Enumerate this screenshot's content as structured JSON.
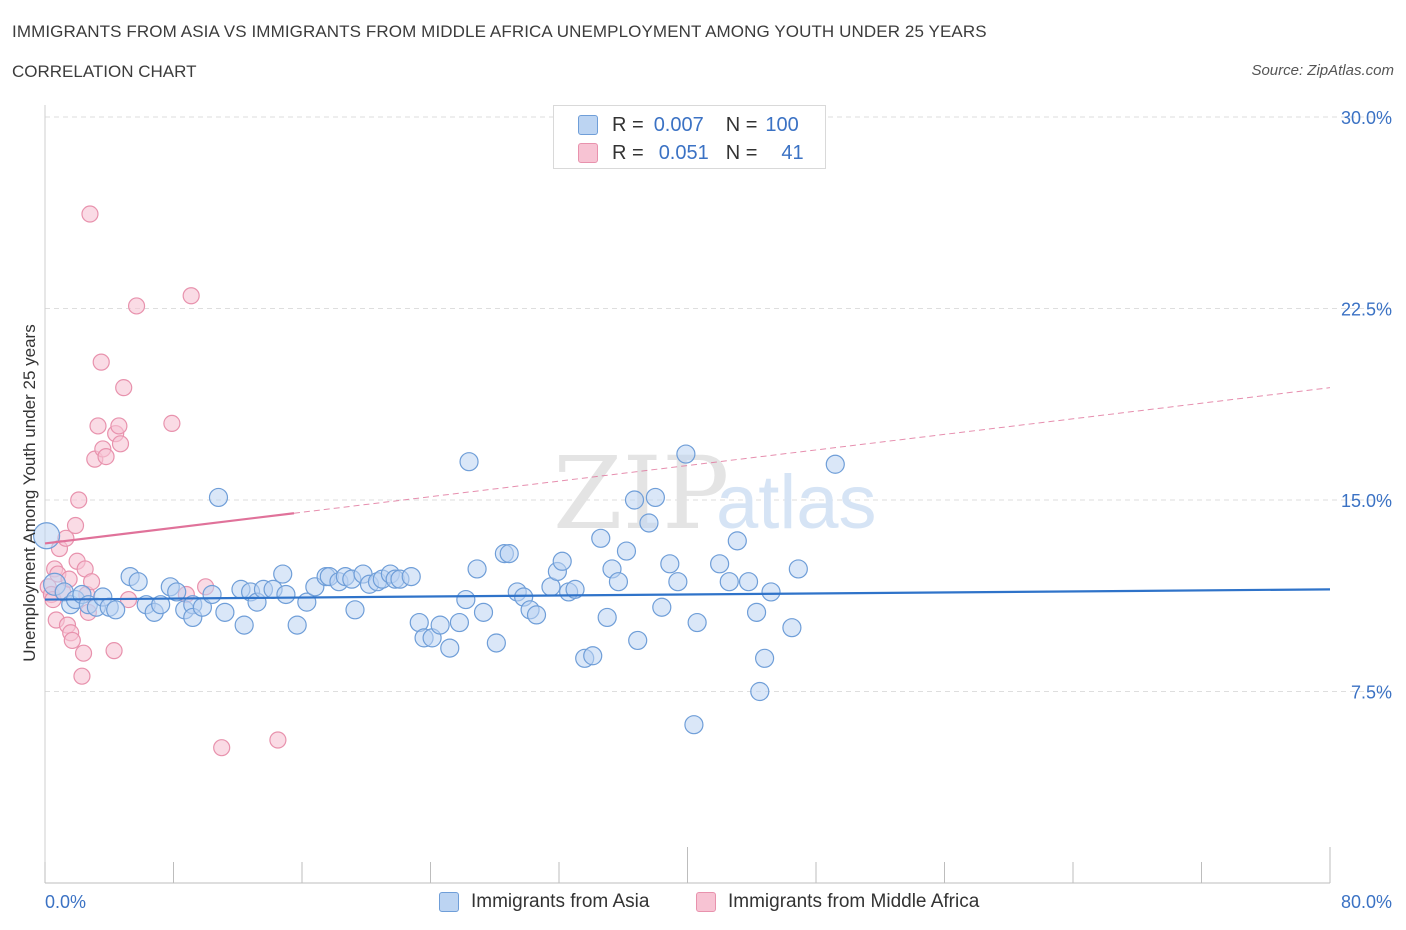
{
  "header": {
    "title": "IMMIGRANTS FROM ASIA VS IMMIGRANTS FROM MIDDLE AFRICA UNEMPLOYMENT AMONG YOUTH UNDER 25 YEARS",
    "subtitle": "CORRELATION CHART",
    "source": "Source: ZipAtlas.com"
  },
  "watermark": {
    "zip": "ZIP",
    "atlas": "atlas"
  },
  "colors": {
    "asia_fill": "#bcd4f2",
    "asia_stroke": "#6f9ed8",
    "asia_line": "#2f73c9",
    "africa_fill": "#f7c3d3",
    "africa_stroke": "#e892ad",
    "africa_line": "#e0729a",
    "axis_label": "#3b72c4"
  },
  "legend": {
    "r_label": "R =",
    "n_label": "N =",
    "rows": [
      {
        "name": "asia",
        "r": "0.007",
        "n": "100"
      },
      {
        "name": "africa",
        "r": "0.051",
        "n": "41"
      }
    ]
  },
  "bottom_legend": {
    "asia": "Immigrants from Asia",
    "africa": "Immigrants from Middle Africa"
  },
  "chart_data": {
    "type": "scatter",
    "title": "IMMIGRANTS FROM ASIA VS IMMIGRANTS FROM MIDDLE AFRICA UNEMPLOYMENT AMONG YOUTH UNDER 25 YEARS",
    "xlabel": "",
    "ylabel": "Unemployment Among Youth under 25 years",
    "xlim": [
      0,
      80
    ],
    "ylim": [
      0,
      30
    ],
    "x_tick_labels": [
      "0.0%",
      "80.0%"
    ],
    "y_ticks": [
      7.5,
      15.0,
      22.5,
      30.0
    ],
    "y_tick_labels": [
      "7.5%",
      "15.0%",
      "22.5%",
      "30.0%"
    ],
    "grid": true,
    "series": [
      {
        "name": "Immigrants from Asia",
        "r": 0.007,
        "n": 100,
        "trend": {
          "x": [
            0,
            80
          ],
          "y": [
            11.1,
            11.5
          ]
        },
        "points": [
          [
            0.1,
            13.6
          ],
          [
            0.6,
            11.7
          ],
          [
            1.2,
            11.4
          ],
          [
            1.6,
            10.9
          ],
          [
            1.9,
            11.1
          ],
          [
            2.3,
            11.3
          ],
          [
            2.7,
            10.9
          ],
          [
            3.2,
            10.8
          ],
          [
            3.6,
            11.2
          ],
          [
            4.0,
            10.8
          ],
          [
            4.4,
            10.7
          ],
          [
            5.3,
            12.0
          ],
          [
            5.8,
            11.8
          ],
          [
            6.3,
            10.9
          ],
          [
            6.8,
            10.6
          ],
          [
            7.2,
            10.9
          ],
          [
            7.8,
            11.6
          ],
          [
            8.2,
            11.4
          ],
          [
            8.7,
            10.7
          ],
          [
            9.2,
            10.9
          ],
          [
            9.2,
            10.4
          ],
          [
            9.8,
            10.8
          ],
          [
            10.4,
            11.3
          ],
          [
            10.8,
            15.1
          ],
          [
            11.2,
            10.6
          ],
          [
            12.2,
            11.5
          ],
          [
            12.4,
            10.1
          ],
          [
            12.8,
            11.4
          ],
          [
            13.2,
            11.0
          ],
          [
            13.6,
            11.5
          ],
          [
            14.2,
            11.5
          ],
          [
            14.8,
            12.1
          ],
          [
            15.0,
            11.3
          ],
          [
            15.7,
            10.1
          ],
          [
            16.3,
            11.0
          ],
          [
            16.8,
            11.6
          ],
          [
            17.5,
            12.0
          ],
          [
            17.7,
            12.0
          ],
          [
            18.3,
            11.8
          ],
          [
            18.7,
            12.0
          ],
          [
            19.1,
            11.9
          ],
          [
            19.3,
            10.7
          ],
          [
            19.8,
            12.1
          ],
          [
            20.2,
            11.7
          ],
          [
            20.7,
            11.8
          ],
          [
            21.0,
            11.9
          ],
          [
            21.5,
            12.1
          ],
          [
            21.8,
            11.9
          ],
          [
            22.1,
            11.9
          ],
          [
            22.8,
            12.0
          ],
          [
            23.3,
            10.2
          ],
          [
            23.6,
            9.6
          ],
          [
            24.1,
            9.6
          ],
          [
            24.6,
            10.1
          ],
          [
            25.2,
            9.2
          ],
          [
            25.8,
            10.2
          ],
          [
            26.2,
            11.1
          ],
          [
            26.4,
            16.5
          ],
          [
            26.9,
            12.3
          ],
          [
            27.3,
            10.6
          ],
          [
            28.1,
            9.4
          ],
          [
            28.6,
            12.9
          ],
          [
            28.9,
            12.9
          ],
          [
            29.4,
            11.4
          ],
          [
            29.8,
            11.2
          ],
          [
            30.2,
            10.7
          ],
          [
            30.6,
            10.5
          ],
          [
            31.5,
            11.6
          ],
          [
            31.9,
            12.2
          ],
          [
            32.2,
            12.6
          ],
          [
            32.6,
            11.4
          ],
          [
            33.0,
            11.5
          ],
          [
            33.6,
            8.8
          ],
          [
            34.1,
            8.9
          ],
          [
            34.6,
            13.5
          ],
          [
            35.0,
            10.4
          ],
          [
            35.3,
            12.3
          ],
          [
            35.7,
            11.8
          ],
          [
            36.2,
            13.0
          ],
          [
            36.7,
            15.0
          ],
          [
            36.9,
            9.5
          ],
          [
            37.6,
            14.1
          ],
          [
            38.0,
            15.1
          ],
          [
            38.4,
            10.8
          ],
          [
            38.9,
            12.5
          ],
          [
            39.4,
            11.8
          ],
          [
            39.9,
            16.8
          ],
          [
            40.4,
            6.2
          ],
          [
            40.6,
            10.2
          ],
          [
            42.0,
            12.5
          ],
          [
            42.6,
            11.8
          ],
          [
            43.1,
            13.4
          ],
          [
            43.8,
            11.8
          ],
          [
            44.3,
            10.6
          ],
          [
            44.5,
            7.5
          ],
          [
            44.8,
            8.8
          ],
          [
            45.2,
            11.4
          ],
          [
            46.5,
            10.0
          ],
          [
            46.9,
            12.3
          ],
          [
            49.2,
            16.4
          ]
        ]
      },
      {
        "name": "Immigrants from Middle Africa",
        "r": 0.051,
        "n": 41,
        "trend": {
          "x": [
            0,
            80
          ],
          "y": [
            13.3,
            19.4
          ]
        },
        "trend_solid_until_x": 15.5,
        "points": [
          [
            0.2,
            11.6
          ],
          [
            0.4,
            11.3
          ],
          [
            0.5,
            11.1
          ],
          [
            0.6,
            12.3
          ],
          [
            0.7,
            10.3
          ],
          [
            0.8,
            12.1
          ],
          [
            0.9,
            13.1
          ],
          [
            1.1,
            11.4
          ],
          [
            1.3,
            13.5
          ],
          [
            1.4,
            10.1
          ],
          [
            1.5,
            11.9
          ],
          [
            1.6,
            9.8
          ],
          [
            1.7,
            9.5
          ],
          [
            1.9,
            14.0
          ],
          [
            2.0,
            12.6
          ],
          [
            2.1,
            15.0
          ],
          [
            2.3,
            8.1
          ],
          [
            2.4,
            9.0
          ],
          [
            2.5,
            12.3
          ],
          [
            2.6,
            11.3
          ],
          [
            2.7,
            10.6
          ],
          [
            2.8,
            26.2
          ],
          [
            2.9,
            11.8
          ],
          [
            3.1,
            16.6
          ],
          [
            3.3,
            17.9
          ],
          [
            3.5,
            20.4
          ],
          [
            3.6,
            17.0
          ],
          [
            3.8,
            16.7
          ],
          [
            4.3,
            9.1
          ],
          [
            4.4,
            17.6
          ],
          [
            4.6,
            17.9
          ],
          [
            4.7,
            17.2
          ],
          [
            4.9,
            19.4
          ],
          [
            5.2,
            11.1
          ],
          [
            5.7,
            22.6
          ],
          [
            7.9,
            18.0
          ],
          [
            8.8,
            11.3
          ],
          [
            9.1,
            23.0
          ],
          [
            10.0,
            11.6
          ],
          [
            11.0,
            5.3
          ],
          [
            14.5,
            5.6
          ]
        ]
      }
    ]
  }
}
